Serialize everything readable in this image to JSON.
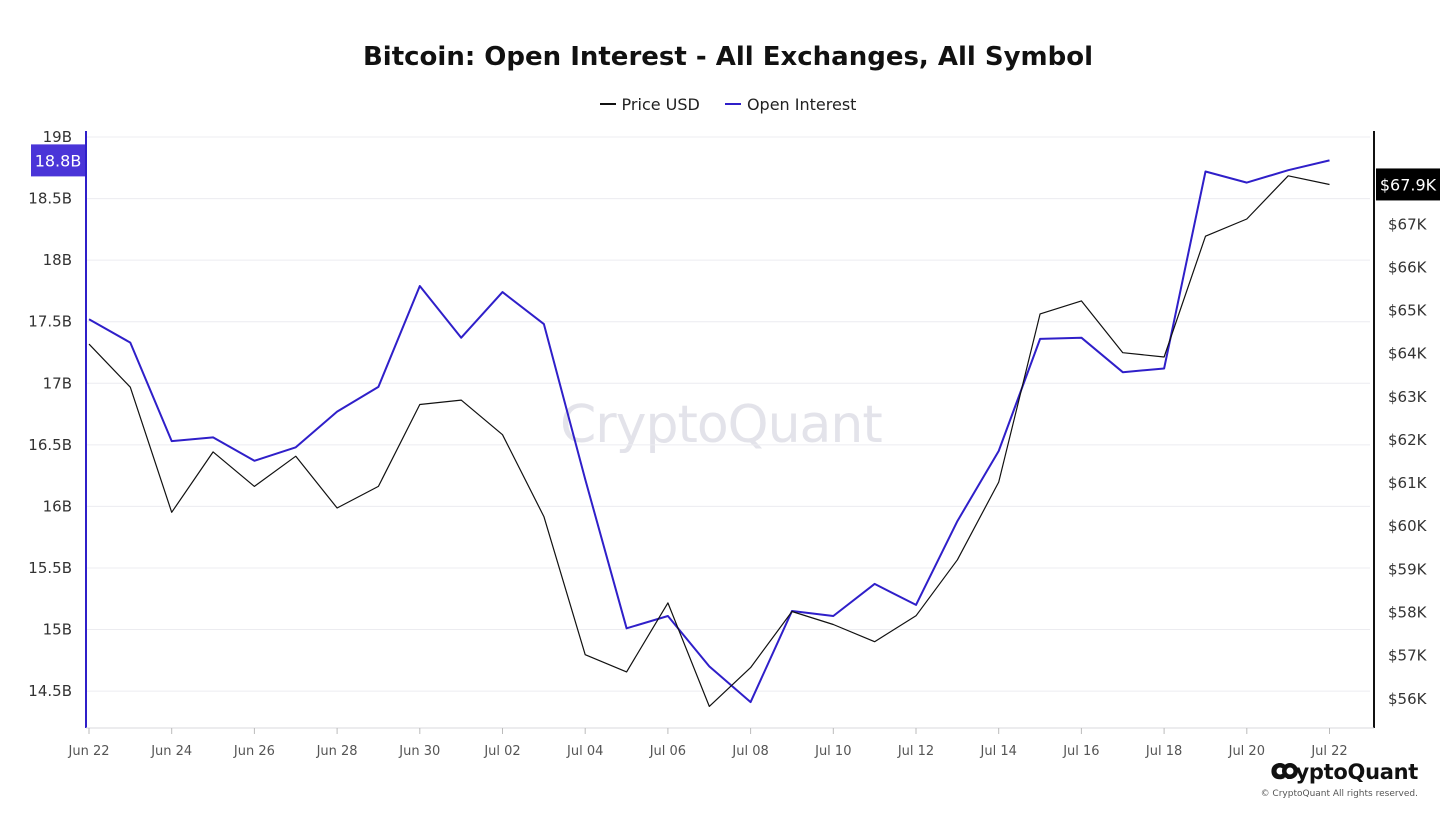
{
  "title": "Bitcoin: Open Interest - All Exchanges, All Symbol",
  "legend": [
    {
      "label": "Price USD",
      "color": "#111111"
    },
    {
      "label": "Open Interest",
      "color": "#2f1fc9"
    }
  ],
  "watermark": "CryptoQuant",
  "brand": {
    "name": "CryptoQuant",
    "copyright": "© CryptoQuant All rights reserved."
  },
  "colors": {
    "open_interest": "#2f1fc9",
    "price": "#111111",
    "oi_badge": "#4a35d8",
    "price_badge": "#000000"
  },
  "badges": {
    "left": "18.8B",
    "right": "$67.9K"
  },
  "chart_data": {
    "type": "line",
    "title": "Bitcoin: Open Interest - All Exchanges, All Symbol",
    "x_tick_labels": [
      "Jun 22",
      "Jun 24",
      "Jun 26",
      "Jun 28",
      "Jun 30",
      "Jul 02",
      "Jul 04",
      "Jul 06",
      "Jul 08",
      "Jul 10",
      "Jul 12",
      "Jul 14",
      "Jul 16",
      "Jul 18",
      "Jul 20",
      "Jul 22"
    ],
    "x": [
      "Jun 22",
      "Jun 23",
      "Jun 24",
      "Jun 25",
      "Jun 26",
      "Jun 27",
      "Jun 28",
      "Jun 29",
      "Jun 30",
      "Jul 01",
      "Jul 02",
      "Jul 03",
      "Jul 04",
      "Jul 05",
      "Jul 06",
      "Jul 07",
      "Jul 08",
      "Jul 09",
      "Jul 10",
      "Jul 11",
      "Jul 12",
      "Jul 13",
      "Jul 14",
      "Jul 15",
      "Jul 16",
      "Jul 17",
      "Jul 18",
      "Jul 19",
      "Jul 20",
      "Jul 21",
      "Jul 22"
    ],
    "left_axis": {
      "ticks": [
        "19B",
        "18.5B",
        "18B",
        "17.5B",
        "17B",
        "16.5B",
        "16B",
        "15.5B",
        "15B",
        "14.5B"
      ],
      "ylim": [
        14.2,
        19.0
      ],
      "unit": "B"
    },
    "right_axis": {
      "ticks": [
        "$67K",
        "$66K",
        "$65K",
        "$64K",
        "$63K",
        "$62K",
        "$61K",
        "$60K",
        "$59K",
        "$58K",
        "$57K",
        "$56K"
      ],
      "ylim": [
        55.3,
        69.0
      ],
      "unit": "K"
    },
    "series": [
      {
        "name": "Open Interest",
        "axis": "left",
        "values": [
          17.52,
          17.33,
          16.53,
          16.56,
          16.37,
          16.48,
          16.77,
          16.97,
          17.79,
          17.37,
          17.74,
          17.48,
          16.22,
          15.01,
          15.11,
          14.7,
          14.41,
          15.15,
          15.11,
          15.37,
          15.2,
          15.88,
          16.45,
          17.36,
          17.37,
          17.09,
          17.12,
          18.72,
          18.63,
          18.73,
          18.81
        ]
      },
      {
        "name": "Price USD",
        "axis": "right",
        "values": [
          64.2,
          63.2,
          60.3,
          61.7,
          60.9,
          61.6,
          60.4,
          60.9,
          62.8,
          62.9,
          62.1,
          60.2,
          57.0,
          56.6,
          58.2,
          55.8,
          56.7,
          58.0,
          57.7,
          57.3,
          57.9,
          59.2,
          61.0,
          64.9,
          65.2,
          64.0,
          63.9,
          66.7,
          67.1,
          68.1,
          67.9
        ]
      }
    ],
    "grid": true,
    "legend_position": "top-center"
  }
}
